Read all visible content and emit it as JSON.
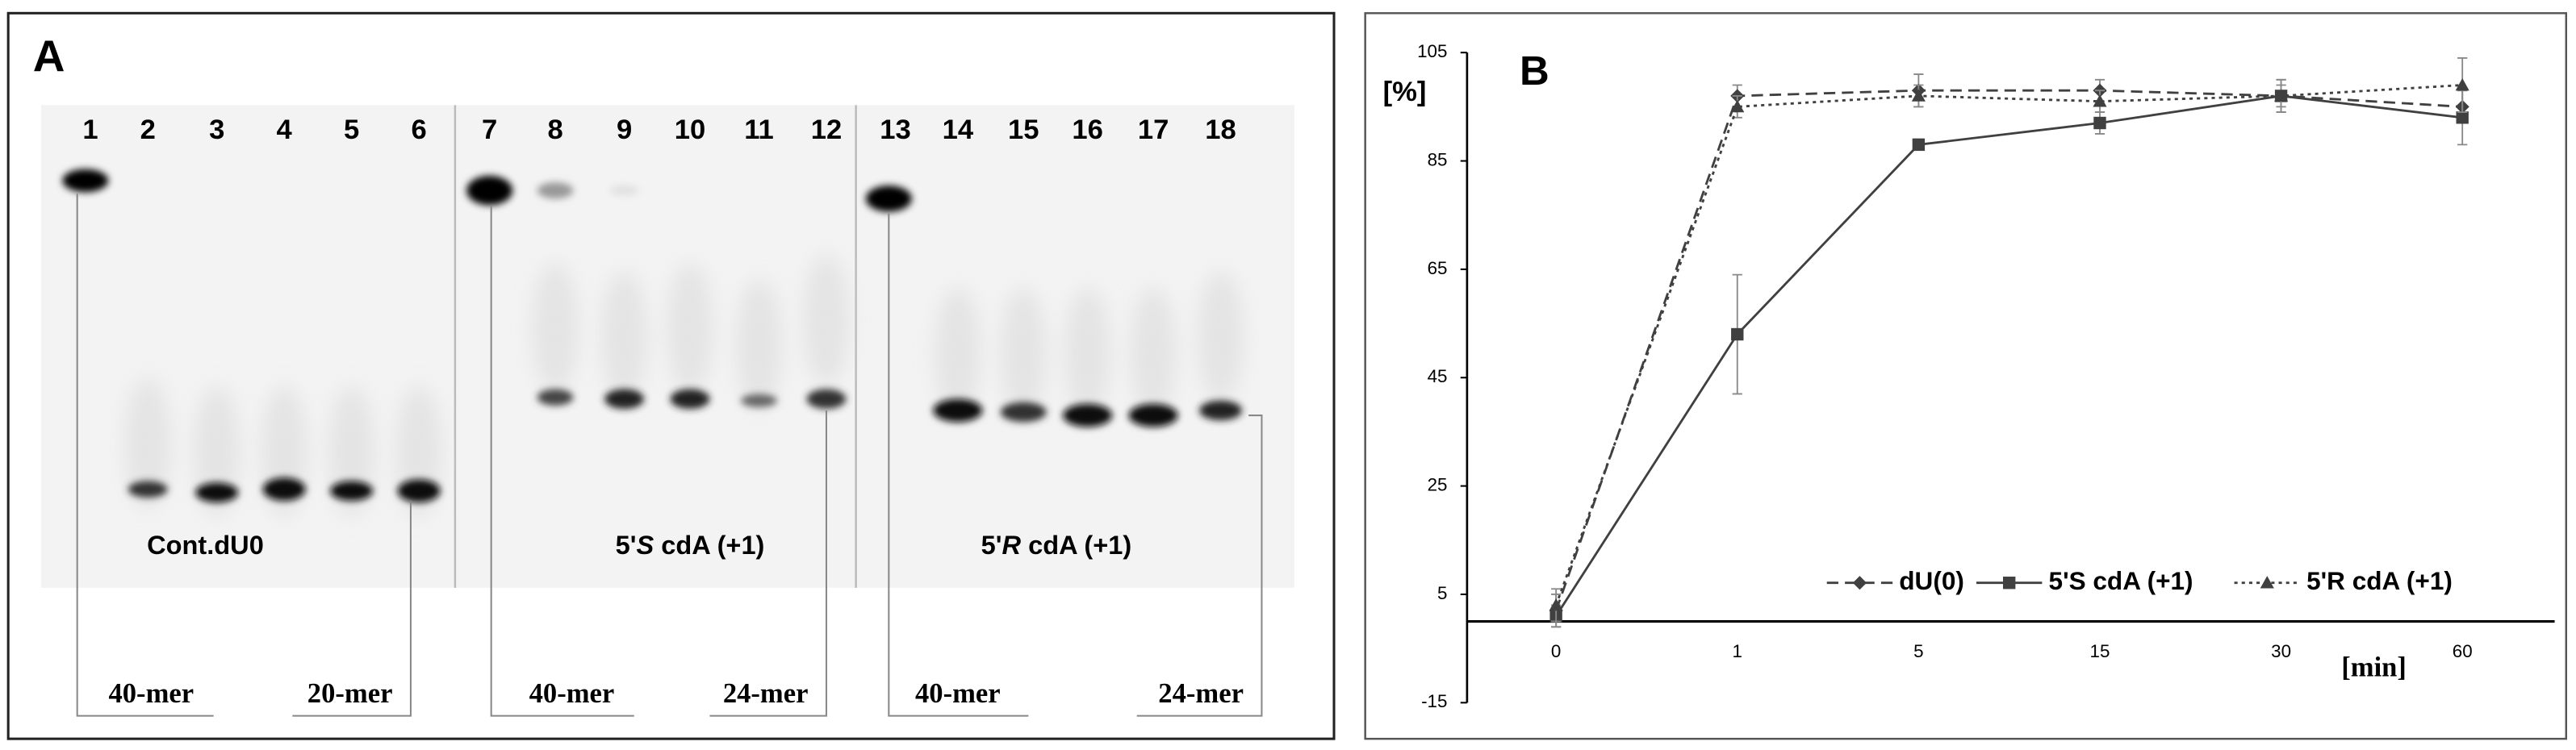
{
  "panel_a": {
    "label": "A",
    "lanes": [
      "1",
      "2",
      "3",
      "4",
      "5",
      "6",
      "7",
      "8",
      "9",
      "10",
      "11",
      "12",
      "13",
      "14",
      "15",
      "16",
      "17",
      "18"
    ],
    "sample_labels": [
      [
        "Cont.dU0"
      ],
      [
        "5'",
        "S",
        " cdA (+1)"
      ],
      [
        "5'",
        "R",
        " cdA (+1)"
      ]
    ],
    "size_markers": [
      "40-mer",
      "20-mer",
      "40-mer",
      "24-mer",
      "40-mer",
      "24-mer"
    ]
  },
  "chart_data": {
    "type": "line",
    "label": "B",
    "y_label": "[%]",
    "x_label": "[min]",
    "categories": [
      "0",
      "1",
      "5",
      "15",
      "30",
      "60"
    ],
    "ylim": [
      -15,
      105
    ],
    "yticks": [
      -15,
      5,
      25,
      45,
      65,
      85,
      105
    ],
    "grid": false,
    "legend": "lower right",
    "series": [
      {
        "name": "dU(0)",
        "color": "#404040",
        "dash": "dashed",
        "marker": "diamond",
        "values": [
          2,
          97,
          98,
          98,
          97,
          95
        ],
        "errors": [
          3,
          2,
          3,
          2,
          2,
          3
        ]
      },
      {
        "name": "5'S cdA (+1)",
        "color": "#404040",
        "dash": "solid",
        "marker": "square",
        "values": [
          1,
          53,
          88,
          92,
          97,
          93
        ],
        "errors": [
          2,
          11,
          1,
          2,
          3,
          5
        ]
      },
      {
        "name": "5'R cdA (+1)",
        "color": "#404040",
        "dash": "dotted",
        "marker": "triangle",
        "values": [
          3,
          95,
          97,
          96,
          97,
          99
        ],
        "errors": [
          3,
          2,
          2,
          2,
          3,
          5
        ]
      }
    ]
  }
}
